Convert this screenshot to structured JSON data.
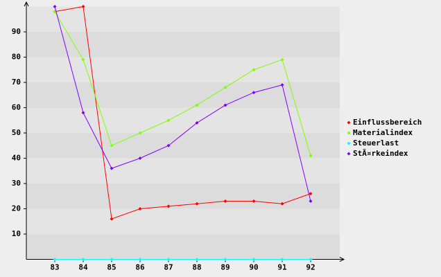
{
  "chart_data": {
    "type": "line",
    "categories": [
      "83",
      "84",
      "85",
      "86",
      "87",
      "88",
      "89",
      "90",
      "91",
      "92"
    ],
    "series": [
      {
        "name": "Einflussbereich",
        "color": "#ff0000",
        "values": [
          98,
          100,
          16,
          20,
          21,
          22,
          23,
          23,
          22,
          26
        ]
      },
      {
        "name": "Materialindex",
        "color": "#80ff00",
        "values": [
          98,
          79,
          45,
          50,
          55,
          61,
          68,
          75,
          79,
          41
        ]
      },
      {
        "name": "Steuerlast",
        "color": "#00ffff",
        "values": [
          0,
          0,
          0,
          0,
          0,
          0,
          0,
          0,
          0,
          0
        ]
      },
      {
        "name": "StÃ¤rkeindex",
        "color": "#8000ff",
        "values": [
          100,
          58,
          36,
          40,
          45,
          54,
          61,
          66,
          69,
          23
        ]
      }
    ],
    "ylim": [
      0,
      100
    ],
    "yticks": [
      10,
      20,
      30,
      40,
      50,
      60,
      70,
      80,
      90
    ],
    "grid": true,
    "legend": "right"
  }
}
